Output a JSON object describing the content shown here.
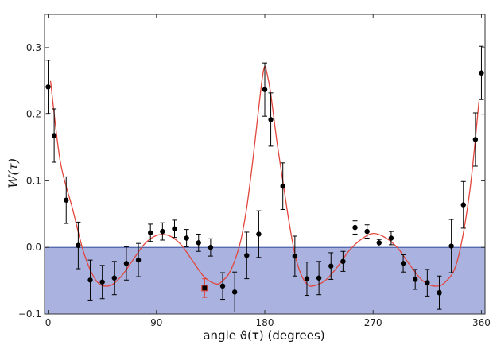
{
  "chart_data": {
    "type": "scatter",
    "title": "",
    "xlabel": "angle ϑ(τ) (degrees)",
    "ylabel": "W(τ)",
    "xlim": [
      -3,
      363
    ],
    "ylim": [
      -0.1,
      0.35
    ],
    "xticks": [
      0,
      90,
      180,
      270,
      360
    ],
    "yticks": [
      -0.1,
      0.0,
      0.1,
      0.2,
      0.3
    ],
    "xtick_labels": [
      "0",
      "90",
      "180",
      "270",
      "360"
    ],
    "ytick_labels": [
      "−0.1",
      "0.0",
      "0.1",
      "0.2",
      "0.3"
    ],
    "grid": false,
    "legend": "none",
    "shaded_region": {
      "from": -0.1,
      "to": 0.0,
      "color": "#aab3e0"
    },
    "zero_line_color": "#4d5fa8",
    "points_color": "#000000",
    "fit_color": "#e2453b",
    "series": [
      {
        "kind": "measurements",
        "x": [
          0,
          5,
          15,
          25,
          35,
          45,
          55,
          65,
          75,
          85,
          95,
          105,
          115,
          125,
          135,
          145,
          155,
          165,
          175,
          180,
          185,
          195,
          205,
          215,
          225,
          235,
          245,
          255,
          265,
          275,
          285,
          295,
          305,
          315,
          325,
          335,
          345,
          355,
          360
        ],
        "y": [
          0.241,
          0.168,
          0.071,
          0.003,
          -0.049,
          -0.052,
          -0.046,
          -0.024,
          -0.019,
          0.022,
          0.024,
          0.028,
          0.014,
          0.007,
          0.0,
          -0.058,
          -0.067,
          -0.012,
          0.02,
          0.237,
          0.192,
          0.092,
          -0.013,
          -0.047,
          -0.046,
          -0.028,
          -0.021,
          0.03,
          0.024,
          0.007,
          0.014,
          -0.024,
          -0.048,
          -0.053,
          -0.068,
          0.002,
          0.064,
          0.162,
          0.262
        ],
        "yerr": [
          0.04,
          0.04,
          0.035,
          0.035,
          0.03,
          0.025,
          0.025,
          0.025,
          0.025,
          0.013,
          0.013,
          0.013,
          0.013,
          0.013,
          0.013,
          0.02,
          0.03,
          0.035,
          0.035,
          0.04,
          0.04,
          0.035,
          0.03,
          0.025,
          0.025,
          0.02,
          0.015,
          0.01,
          0.01,
          0.005,
          0.01,
          0.013,
          0.015,
          0.02,
          0.025,
          0.04,
          0.035,
          0.04,
          0.04
        ]
      },
      {
        "kind": "highlighted-point",
        "x": [
          130
        ],
        "y": [
          -0.061
        ],
        "yerr": [
          0.014
        ]
      },
      {
        "kind": "fit-curve",
        "x": [
          2,
          10,
          20,
          30,
          40,
          50,
          60,
          70,
          80,
          90,
          100,
          110,
          120,
          130,
          140,
          145,
          150,
          155,
          160,
          165,
          170,
          175,
          178,
          180,
          182,
          185,
          190,
          195,
          200,
          205,
          210,
          215,
          220,
          230,
          240,
          250,
          260,
          270,
          280,
          290,
          300,
          310,
          320,
          330,
          340,
          350,
          358
        ],
        "y": [
          0.25,
          0.13,
          0.06,
          -0.01,
          -0.05,
          -0.058,
          -0.045,
          -0.02,
          0.005,
          0.018,
          0.018,
          0.005,
          -0.02,
          -0.045,
          -0.055,
          -0.05,
          -0.04,
          -0.02,
          0.01,
          0.06,
          0.13,
          0.21,
          0.255,
          0.272,
          0.26,
          0.23,
          0.16,
          0.1,
          0.04,
          -0.01,
          -0.04,
          -0.055,
          -0.058,
          -0.05,
          -0.03,
          -0.005,
          0.012,
          0.021,
          0.015,
          0.0,
          -0.025,
          -0.048,
          -0.058,
          -0.052,
          -0.02,
          0.08,
          0.22
        ]
      }
    ]
  }
}
